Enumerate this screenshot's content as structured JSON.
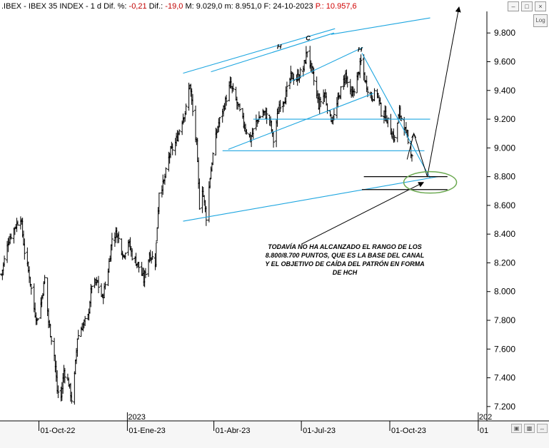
{
  "header": {
    "symbol": ".IBEX - IBEX 35 INDEX - 1 d",
    "dif_pct_label": "Dif. %:",
    "dif_pct_value": "-0,21",
    "dif_label": "Dif.:",
    "dif_value": "-19,0",
    "max_text": "M: 9.029,0",
    "min_text": "m: 8.951,0",
    "date_text": "F: 24-10-2023",
    "p_text": "P.: 10.957,6"
  },
  "controls": {
    "log_label": "Log",
    "window_icons": [
      "minimize-icon",
      "restore-icon",
      "close-icon"
    ],
    "scroll_icons": [
      "fit-icon",
      "zoom-icon",
      "scroll-icon"
    ]
  },
  "annotation": {
    "text": "TODAVÍA NO HA ALCANZADO EL RANGO DE LOS 8.800/8.700 PUNTOS, QUE ES LA BASE DEL CANAL Y EL OBJETIVO DE CAÍDA DEL PATRÓN EN FORMA DE HCH"
  },
  "chart_data": {
    "type": "ohlc",
    "title": "",
    "ylim": [
      7100,
      9950
    ],
    "y_ticks": [
      "9.800",
      "9.600",
      "9.400",
      "9.200",
      "9.000",
      "8.800",
      "8.600",
      "8.400",
      "8.200",
      "8.000",
      "7.800",
      "7.600",
      "7.400",
      "7.200"
    ],
    "y_tick_values": [
      9800,
      9600,
      9400,
      9200,
      9000,
      8800,
      8600,
      8400,
      8200,
      8000,
      7800,
      7600,
      7400,
      7200
    ],
    "x_ticks": [
      "01-Oct-22",
      "01-Ene-23",
      "01-Abr-23",
      "01-Jul-23",
      "01-Oct-23",
      "01"
    ],
    "year_marks": [
      "2023",
      "202"
    ],
    "x_range": [
      "2022-08-23",
      "2024-01-10"
    ],
    "grid": false,
    "close_path": [
      [
        "2022-08-23",
        8120
      ],
      [
        "2022-08-30",
        8350
      ],
      [
        "2022-09-06",
        8450
      ],
      [
        "2022-09-12",
        8520
      ],
      [
        "2022-09-16",
        8280
      ],
      [
        "2022-09-21",
        8110
      ],
      [
        "2022-09-26",
        7880
      ],
      [
        "2022-09-29",
        7800
      ],
      [
        "2022-10-03",
        7920
      ],
      [
        "2022-10-07",
        8090
      ],
      [
        "2022-10-11",
        7790
      ],
      [
        "2022-10-17",
        7560
      ],
      [
        "2022-10-20",
        7310
      ],
      [
        "2022-10-24",
        7270
      ],
      [
        "2022-10-27",
        7450
      ],
      [
        "2022-11-01",
        7360
      ],
      [
        "2022-11-04",
        7250
      ],
      [
        "2022-11-07",
        7410
      ],
      [
        "2022-11-10",
        7680
      ],
      [
        "2022-11-15",
        7760
      ],
      [
        "2022-11-21",
        7820
      ],
      [
        "2022-11-25",
        8050
      ],
      [
        "2022-12-01",
        8060
      ],
      [
        "2022-12-06",
        7950
      ],
      [
        "2022-12-12",
        8150
      ],
      [
        "2022-12-16",
        8370
      ],
      [
        "2022-12-21",
        8410
      ],
      [
        "2022-12-28",
        8250
      ],
      [
        "2023-01-02",
        8350
      ],
      [
        "2023-01-06",
        8250
      ],
      [
        "2023-01-12",
        8190
      ],
      [
        "2023-01-18",
        8080
      ],
      [
        "2023-01-24",
        8260
      ],
      [
        "2023-01-30",
        8210
      ],
      [
        "2023-02-03",
        8700
      ],
      [
        "2023-02-08",
        8760
      ],
      [
        "2023-02-14",
        8960
      ],
      [
        "2023-02-20",
        9030
      ],
      [
        "2023-02-27",
        9200
      ],
      [
        "2023-03-03",
        9270
      ],
      [
        "2023-03-07",
        9450
      ],
      [
        "2023-03-10",
        9250
      ],
      [
        "2023-03-14",
        9020
      ],
      [
        "2023-03-17",
        8600
      ],
      [
        "2023-03-20",
        8720
      ],
      [
        "2023-03-24",
        8520
      ],
      [
        "2023-03-28",
        8800
      ],
      [
        "2023-04-01",
        9000
      ],
      [
        "2023-04-05",
        9150
      ],
      [
        "2023-04-12",
        9300
      ],
      [
        "2023-04-18",
        9440
      ],
      [
        "2023-04-24",
        9330
      ],
      [
        "2023-04-28",
        9250
      ],
      [
        "2023-05-03",
        9150
      ],
      [
        "2023-05-09",
        9060
      ],
      [
        "2023-05-15",
        9180
      ],
      [
        "2023-05-22",
        9250
      ],
      [
        "2023-05-29",
        9200
      ],
      [
        "2023-06-02",
        9050
      ],
      [
        "2023-06-08",
        9300
      ],
      [
        "2023-06-14",
        9350
      ],
      [
        "2023-06-20",
        9500
      ],
      [
        "2023-06-26",
        9480
      ],
      [
        "2023-07-03",
        9550
      ],
      [
        "2023-07-07",
        9680
      ],
      [
        "2023-07-13",
        9500
      ],
      [
        "2023-07-19",
        9300
      ],
      [
        "2023-07-25",
        9380
      ],
      [
        "2023-07-31",
        9200
      ],
      [
        "2023-08-04",
        9220
      ],
      [
        "2023-08-10",
        9380
      ],
      [
        "2023-08-16",
        9510
      ],
      [
        "2023-08-22",
        9350
      ],
      [
        "2023-08-28",
        9480
      ],
      [
        "2023-09-01",
        9600
      ],
      [
        "2023-09-06",
        9450
      ],
      [
        "2023-09-12",
        9350
      ],
      [
        "2023-09-18",
        9390
      ],
      [
        "2023-09-22",
        9250
      ],
      [
        "2023-09-27",
        9220
      ],
      [
        "2023-10-02",
        9120
      ],
      [
        "2023-10-06",
        9060
      ],
      [
        "2023-10-11",
        9250
      ],
      [
        "2023-10-16",
        9150
      ],
      [
        "2023-10-20",
        9030
      ],
      [
        "2023-10-24",
        8960
      ]
    ],
    "pattern_labels": [
      "H",
      "C",
      "H"
    ],
    "lines": [
      {
        "name": "channel-upper",
        "color": "#1ea6e0",
        "points": [
          [
            "2023-02-28",
            9520
          ],
          [
            "2023-08-05",
            9830
          ]
        ]
      },
      {
        "name": "channel-upper-2",
        "color": "#1ea6e0",
        "points": [
          [
            "2023-03-29",
            9530
          ],
          [
            "2023-08-04",
            9800
          ]
        ]
      },
      {
        "name": "channel-upper-3",
        "color": "#1ea6e0",
        "points": [
          [
            "2023-08-01",
            9790
          ],
          [
            "2023-11-12",
            9905
          ]
        ]
      },
      {
        "name": "channel-lower",
        "color": "#1ea6e0",
        "points": [
          [
            "2023-02-28",
            8490
          ],
          [
            "2023-11-20",
            8800
          ]
        ]
      },
      {
        "name": "hch-neckline",
        "color": "#1ea6e0",
        "points": [
          [
            "2023-04-16",
            8990
          ],
          [
            "2023-09-14",
            9380
          ]
        ]
      },
      {
        "name": "inner-upper",
        "color": "#1ea6e0",
        "points": [
          [
            "2023-06-19",
            9460
          ],
          [
            "2023-09-03",
            9700
          ]
        ]
      },
      {
        "name": "support-9200",
        "color": "#1ea6e0",
        "points": [
          [
            "2023-05-12",
            9200
          ],
          [
            "2023-11-12",
            9200
          ]
        ]
      },
      {
        "name": "support-8980",
        "color": "#1ea6e0",
        "points": [
          [
            "2023-04-10",
            8980
          ],
          [
            "2023-11-06",
            8980
          ]
        ]
      },
      {
        "name": "right-shoulder-decline",
        "color": "#1ea6e0",
        "points": [
          [
            "2023-09-02",
            9660
          ],
          [
            "2023-11-12",
            8790
          ]
        ]
      },
      {
        "name": "range-top-8800",
        "color": "#000000",
        "points": [
          [
            "2023-09-04",
            8800
          ],
          [
            "2023-11-30",
            8800
          ]
        ]
      },
      {
        "name": "range-bottom-8700",
        "color": "#000000",
        "points": [
          [
            "2023-09-02",
            8710
          ],
          [
            "2023-11-30",
            8710
          ]
        ]
      }
    ],
    "arrows": [
      {
        "name": "projection-arrow",
        "points": [
          [
            "2023-10-19",
            8920
          ],
          [
            "2023-10-26",
            9100
          ],
          [
            "2023-11-09",
            8800
          ],
          [
            "2023-12-12",
            9980
          ]
        ]
      },
      {
        "name": "annotation-arrow",
        "points": [
          [
            "2023-07-01",
            8330
          ],
          [
            "2023-11-05",
            8760
          ]
        ]
      }
    ],
    "target_ellipse": {
      "center": [
        "2023-11-12",
        8760
      ],
      "color": "#6aa84f"
    }
  }
}
